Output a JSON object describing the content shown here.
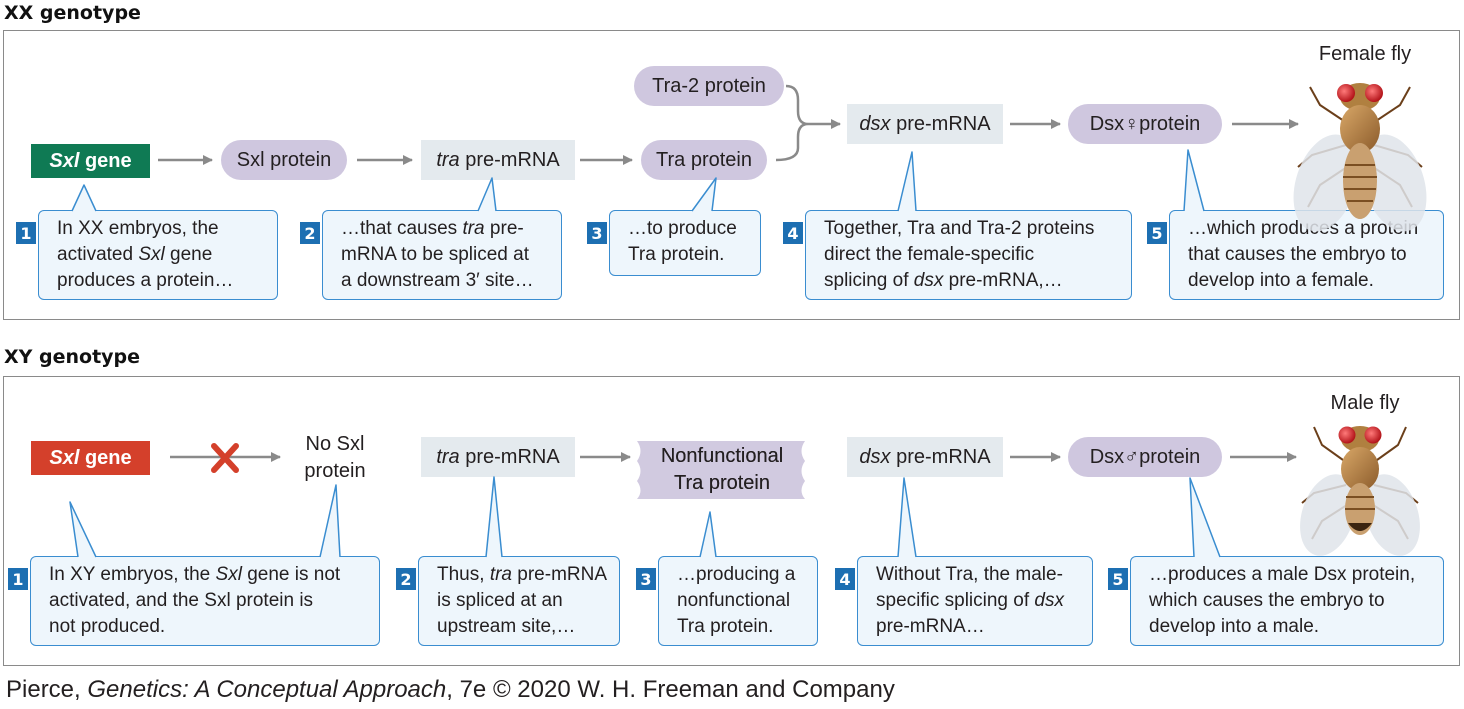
{
  "xx": {
    "title": "XX genotype",
    "gene_italic": "Sxl",
    "gene_rest": " gene",
    "sxl_protein": "Sxl protein",
    "tra_mrna_italic": "tra",
    "tra_mrna_rest": " pre-mRNA",
    "tra2_protein": "Tra-2 protein",
    "tra_protein": "Tra protein",
    "dsx_mrna_italic": "dsx",
    "dsx_mrna_rest": " pre-mRNA",
    "dsx_protein": "Dsx♀protein",
    "fly_label": "Female fly",
    "callouts": [
      {
        "num": "1",
        "l1": "In XX embryos, the",
        "l2a": "activated ",
        "l2i": "Sxl",
        "l2b": " gene",
        "l3": "produces a protein…"
      },
      {
        "num": "2",
        "l1a": "…that causes ",
        "l1i": "tra",
        "l1b": " pre-",
        "l2": "mRNA to be spliced at",
        "l3": "a downstream 3′ site…"
      },
      {
        "num": "3",
        "l1": "…to produce",
        "l2": "Tra protein."
      },
      {
        "num": "4",
        "l1": "Together, Tra and Tra-2 proteins",
        "l2": "direct the female-specific",
        "l3a": "splicing of ",
        "l3i": "dsx",
        "l3b": " pre-mRNA,…"
      },
      {
        "num": "5",
        "l1": "…which produces a protein",
        "l2": "that causes the embryo to",
        "l3": "develop into a female."
      }
    ]
  },
  "xy": {
    "title": "XY genotype",
    "gene_italic": "Sxl",
    "gene_rest": " gene",
    "no_sxl_l1": "No Sxl",
    "no_sxl_l2": "protein",
    "tra_mrna_italic": "tra",
    "tra_mrna_rest": " pre-mRNA",
    "nonfunc_l1": "Nonfunctional",
    "nonfunc_l2": "Tra protein",
    "dsx_mrna_italic": "dsx",
    "dsx_mrna_rest": " pre-mRNA",
    "dsx_protein": "Dsx♂protein",
    "fly_label": "Male fly",
    "callouts": [
      {
        "num": "1",
        "l1a": "In XY embryos, the ",
        "l1i": "Sxl",
        "l1b": " gene is not",
        "l2": "activated, and the Sxl protein is",
        "l3": "not produced."
      },
      {
        "num": "2",
        "l1a": "Thus, ",
        "l1i": "tra",
        "l1b": " pre-mRNA",
        "l2": "is spliced at an",
        "l3": "upstream site,…"
      },
      {
        "num": "3",
        "l1": "…producing a",
        "l2": "nonfunctional",
        "l3": "Tra protein."
      },
      {
        "num": "4",
        "l1": "Without Tra, the male-",
        "l2a": "specific splicing of ",
        "l2i": "dsx",
        "l3": "pre-mRNA…"
      },
      {
        "num": "5",
        "l1": "…produces a male Dsx protein,",
        "l2": "which causes the embryo to",
        "l3": "develop into a male."
      }
    ]
  },
  "credit": {
    "author": "Pierce, ",
    "book_italic": "Genetics: A Conceptual Approach",
    "rest": ", 7e © 2020 W. H. Freeman and Company"
  },
  "colors": {
    "pill": "#cfc7df",
    "mrna": "#e4eaee",
    "gene_green": "#0f7a54",
    "gene_red": "#d4402b",
    "callout_border": "#3a8dd0",
    "number_box": "#1d6fb2",
    "arrow": "#8a8a8a",
    "x_mark": "#d4402b"
  }
}
